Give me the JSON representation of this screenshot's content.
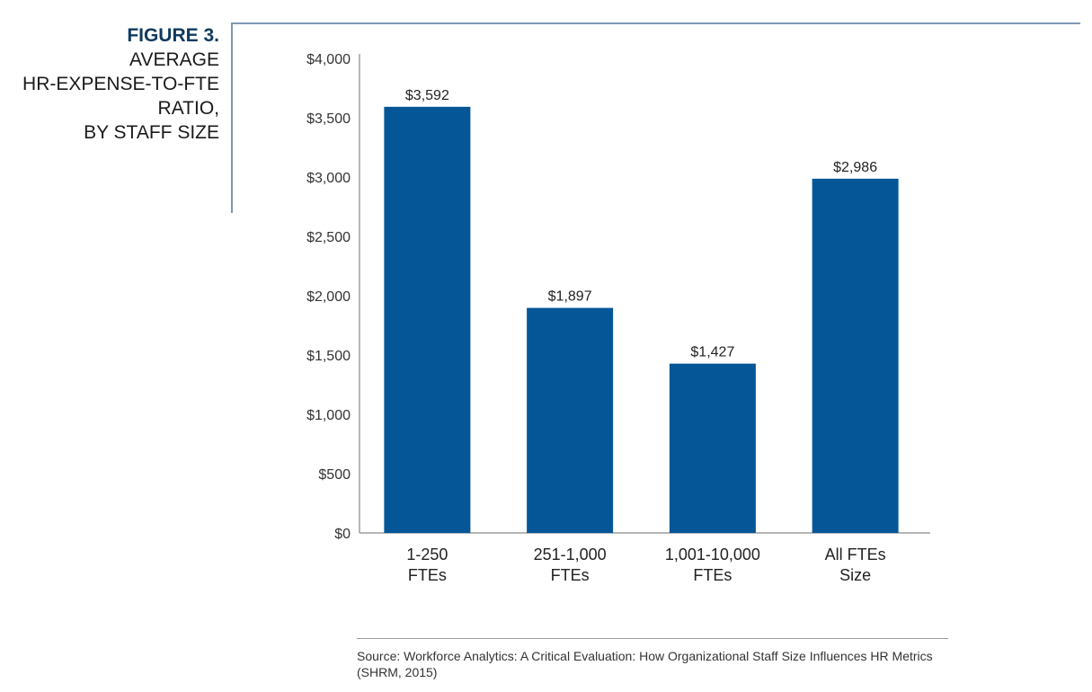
{
  "figure": {
    "number": "FIGURE 3.",
    "title_lines": [
      "AVERAGE",
      "HR-EXPENSE-TO-FTE",
      "RATIO,",
      "BY STAFF SIZE"
    ]
  },
  "colors": {
    "bar": "#045697",
    "frame": "#7f98b5",
    "axis": "#8a8a8a",
    "title_accent": "#0f3a5f"
  },
  "chart_data": {
    "type": "bar",
    "title": "Average HR-Expense-to-FTE Ratio, by Staff Size",
    "categories": [
      [
        "1-250",
        "FTEs"
      ],
      [
        "251-1,000",
        "FTEs"
      ],
      [
        "1,001-10,000",
        "FTEs"
      ],
      [
        "All FTEs",
        "Size"
      ]
    ],
    "values": [
      3592,
      1897,
      1427,
      2986
    ],
    "data_labels": [
      "$3,592",
      "$1,897",
      "$1,427",
      "$2,986"
    ],
    "ylim": [
      0,
      4000
    ],
    "yticks": [
      0,
      500,
      1000,
      1500,
      2000,
      2500,
      3000,
      3500,
      4000
    ],
    "ytick_labels": [
      "$0",
      "$500",
      "$1,000",
      "$1,500",
      "$2,000",
      "$2,500",
      "$3,000",
      "$3,500",
      "$4,000"
    ],
    "xlabel": "",
    "ylabel": "",
    "grid": false,
    "legend": "none"
  },
  "source": "Source: Workforce Analytics: A Critical Evaluation: How Organizational Staff Size Influences HR Metrics (SHRM, 2015)"
}
